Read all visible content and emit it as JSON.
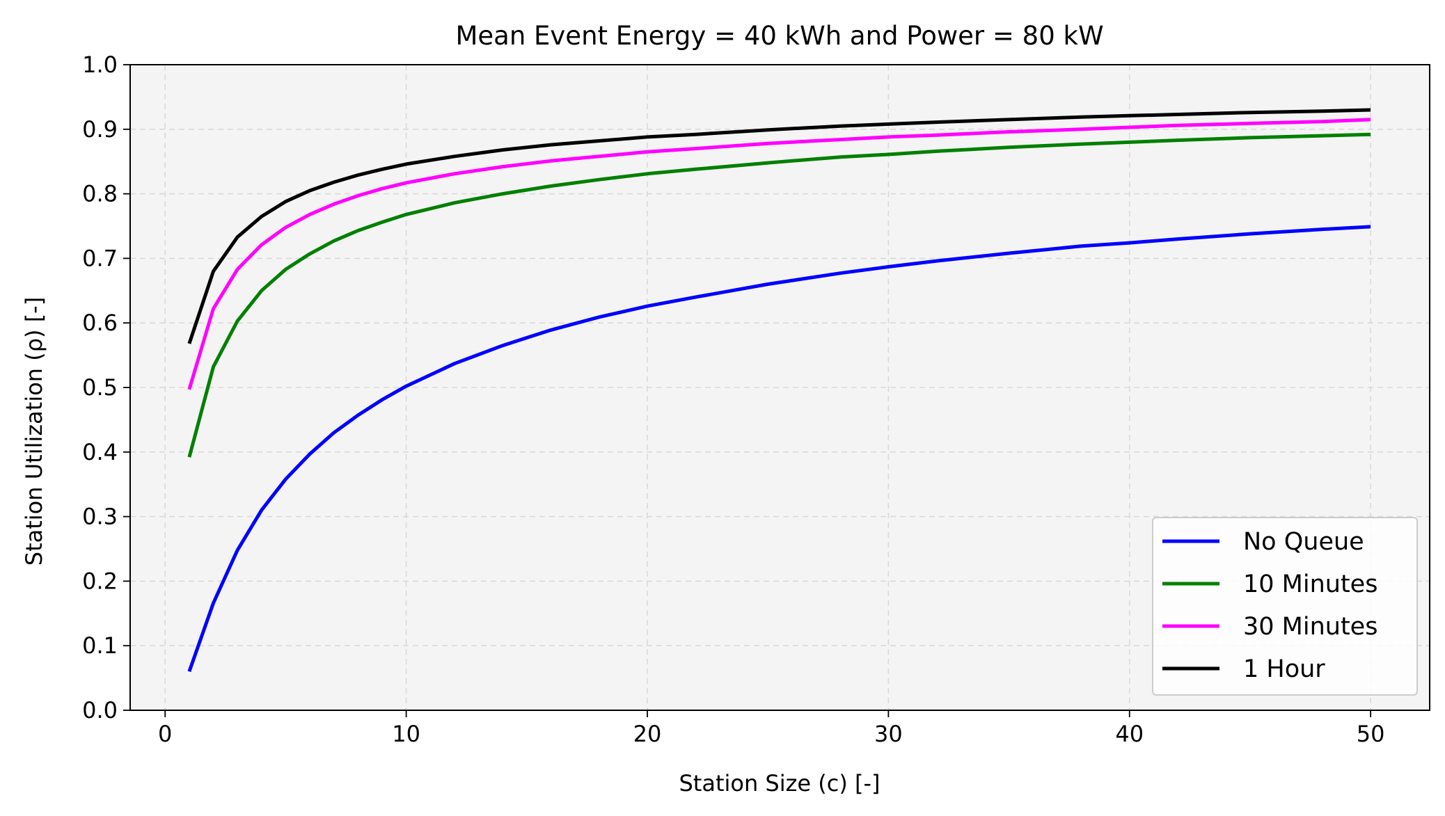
{
  "chart_data": {
    "type": "line",
    "title": "Mean Event Energy = 40 kWh and Power = 80 kW",
    "xlabel": "Station Size (c) [-]",
    "ylabel": "Station Utilization (ρ) [-]",
    "xlim": [
      -1.45,
      52.45
    ],
    "ylim": [
      0.0,
      1.0
    ],
    "xticks": [
      0,
      10,
      20,
      30,
      40,
      50
    ],
    "xtick_labels": [
      "0",
      "10",
      "20",
      "30",
      "40",
      "50"
    ],
    "yticks": [
      0.0,
      0.1,
      0.2,
      0.3,
      0.4,
      0.5,
      0.6,
      0.7,
      0.8,
      0.9,
      1.0
    ],
    "ytick_labels": [
      "0.0",
      "0.1",
      "0.2",
      "0.3",
      "0.4",
      "0.5",
      "0.6",
      "0.7",
      "0.8",
      "0.9",
      "1.0"
    ],
    "grid": true,
    "legend_position": "lower-right",
    "background_color": "#f4f4f4",
    "series": [
      {
        "name": "No Queue",
        "color": "#0000ff",
        "x": [
          1,
          2,
          3,
          4,
          5,
          6,
          7,
          8,
          9,
          10,
          12,
          14,
          16,
          18,
          20,
          22,
          25,
          28,
          30,
          32,
          35,
          38,
          40,
          42,
          45,
          48,
          50
        ],
        "y": [
          0.06,
          0.166,
          0.248,
          0.31,
          0.358,
          0.397,
          0.43,
          0.457,
          0.481,
          0.502,
          0.537,
          0.565,
          0.589,
          0.609,
          0.626,
          0.64,
          0.66,
          0.677,
          0.687,
          0.696,
          0.708,
          0.719,
          0.724,
          0.73,
          0.738,
          0.745,
          0.749
        ]
      },
      {
        "name": "10 Minutes",
        "color": "#008000",
        "x": [
          1,
          2,
          3,
          4,
          5,
          6,
          7,
          8,
          9,
          10,
          12,
          14,
          16,
          18,
          20,
          22,
          25,
          28,
          30,
          32,
          35,
          38,
          40,
          42,
          45,
          48,
          50
        ],
        "y": [
          0.392,
          0.532,
          0.603,
          0.65,
          0.683,
          0.707,
          0.727,
          0.743,
          0.756,
          0.768,
          0.786,
          0.8,
          0.812,
          0.822,
          0.831,
          0.838,
          0.848,
          0.857,
          0.861,
          0.866,
          0.872,
          0.877,
          0.88,
          0.883,
          0.887,
          0.89,
          0.892
        ]
      },
      {
        "name": "30 Minutes",
        "color": "#ff00ff",
        "x": [
          1,
          2,
          3,
          4,
          5,
          6,
          7,
          8,
          9,
          10,
          12,
          14,
          16,
          18,
          20,
          22,
          25,
          28,
          30,
          32,
          35,
          38,
          40,
          42,
          45,
          48,
          50
        ],
        "y": [
          0.497,
          0.622,
          0.683,
          0.721,
          0.748,
          0.768,
          0.784,
          0.797,
          0.808,
          0.817,
          0.831,
          0.842,
          0.851,
          0.858,
          0.865,
          0.87,
          0.878,
          0.884,
          0.888,
          0.891,
          0.896,
          0.9,
          0.903,
          0.906,
          0.909,
          0.912,
          0.915
        ]
      },
      {
        "name": "1 Hour",
        "color": "#000000",
        "x": [
          1,
          2,
          3,
          4,
          5,
          6,
          7,
          8,
          9,
          10,
          12,
          14,
          16,
          18,
          20,
          22,
          25,
          28,
          30,
          32,
          35,
          38,
          40,
          42,
          45,
          48,
          50
        ],
        "y": [
          0.568,
          0.68,
          0.733,
          0.765,
          0.788,
          0.805,
          0.818,
          0.829,
          0.838,
          0.846,
          0.858,
          0.868,
          0.876,
          0.882,
          0.888,
          0.892,
          0.899,
          0.905,
          0.908,
          0.911,
          0.915,
          0.919,
          0.921,
          0.923,
          0.926,
          0.928,
          0.93
        ]
      }
    ]
  }
}
